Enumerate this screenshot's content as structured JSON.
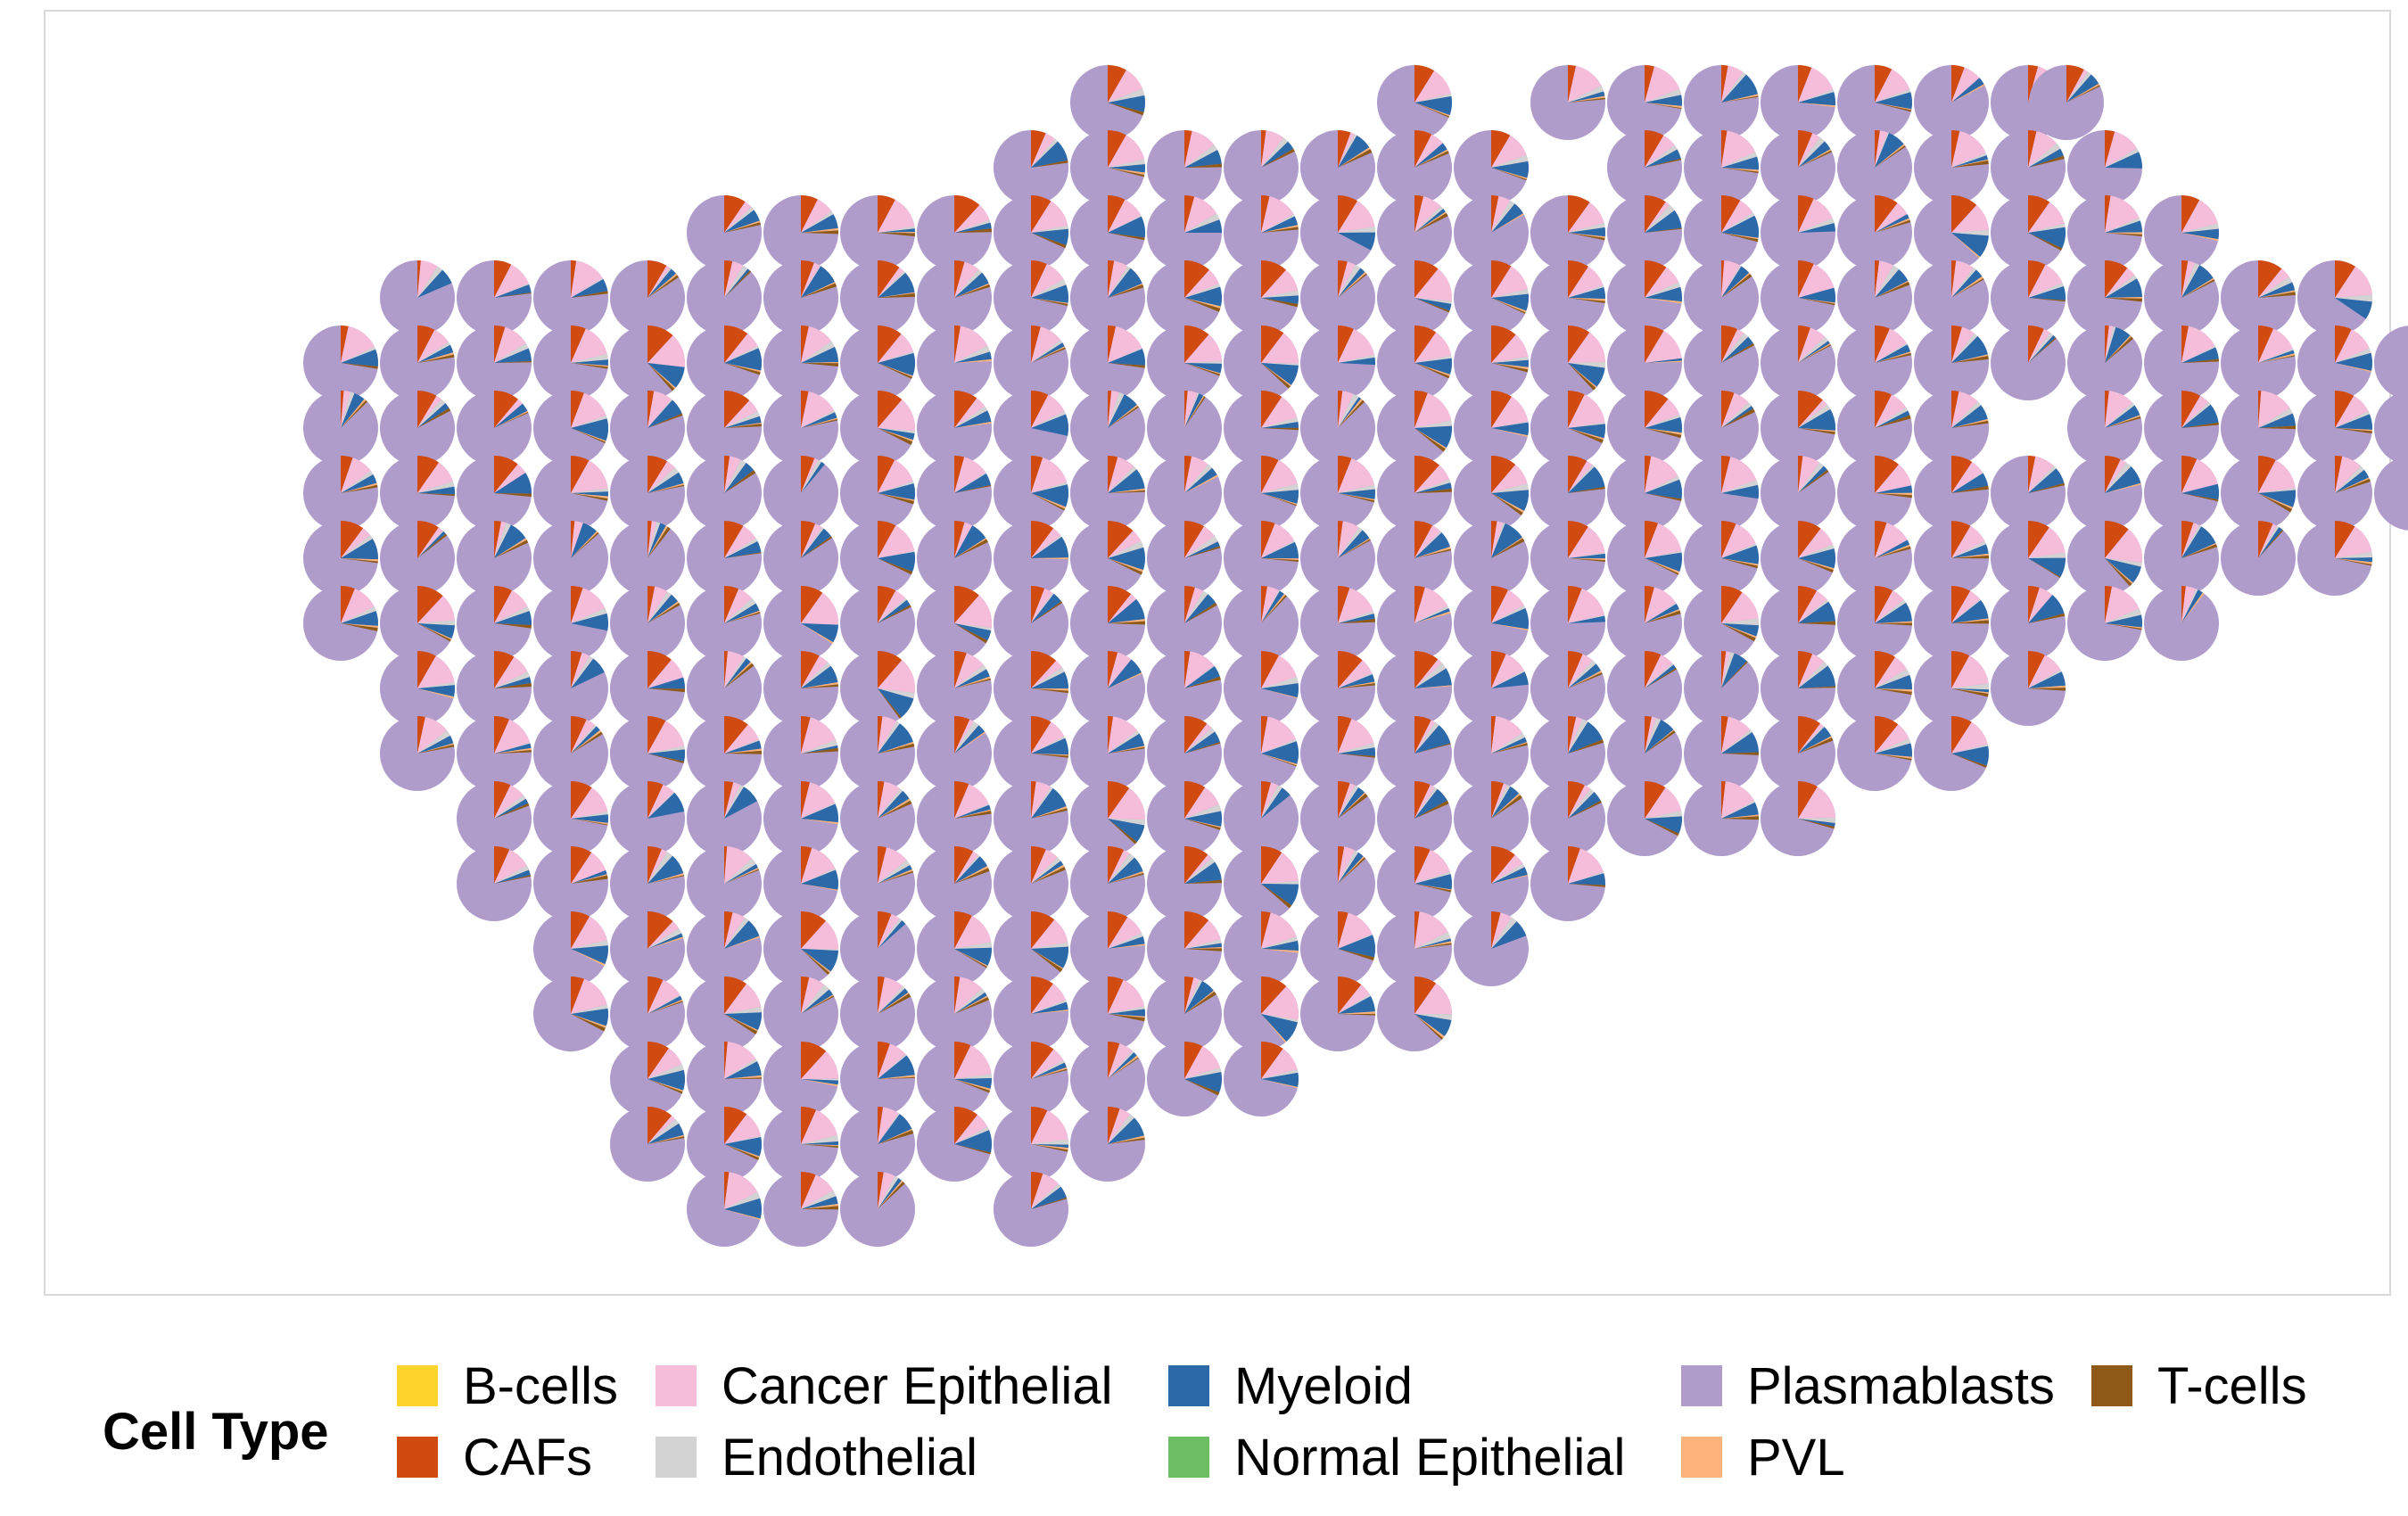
{
  "chart_data": {
    "type": "scatterpie",
    "title": "",
    "xlabel": "",
    "ylabel": "",
    "grid": false,
    "legend_position": "bottom",
    "legend": {
      "title": "Cell Type",
      "entries": [
        {
          "name": "B-cells",
          "color": "#FDD42B"
        },
        {
          "name": "CAFs",
          "color": "#D14A0F"
        },
        {
          "name": "Cancer Epithelial",
          "color": "#F6BDDB"
        },
        {
          "name": "Endothelial",
          "color": "#D3D3D3"
        },
        {
          "name": "Myeloid",
          "color": "#2C69A9"
        },
        {
          "name": "Normal Epithelial",
          "color": "#6DBD63"
        },
        {
          "name": "Plasmablasts",
          "color": "#AF9CCB"
        },
        {
          "name": "PVL",
          "color": "#FDB37A"
        },
        {
          "name": "T-cells",
          "color": "#8F5A18"
        }
      ]
    },
    "spot_rows": [
      {
        "row": 0,
        "cols": [
          12,
          16,
          18,
          19,
          20,
          21,
          22,
          23,
          24,
          24.5
        ]
      },
      {
        "row": 1,
        "cols": [
          11,
          12,
          13,
          14,
          15,
          16,
          17,
          19,
          20,
          21,
          22,
          23,
          24,
          25
        ]
      },
      {
        "row": 2,
        "cols": [
          7,
          8,
          9,
          10,
          11,
          12,
          13,
          14,
          15,
          16,
          17,
          18,
          19,
          20,
          21,
          22,
          23,
          24,
          25,
          26
        ]
      },
      {
        "row": 3,
        "cols": [
          3,
          4,
          5,
          6,
          7,
          8,
          9,
          10,
          11,
          12,
          13,
          14,
          15,
          16,
          17,
          18,
          19,
          20,
          21,
          22,
          23,
          24,
          25,
          26,
          27,
          28
        ]
      },
      {
        "row": 4,
        "cols": [
          2,
          3,
          4,
          5,
          6,
          7,
          8,
          9,
          10,
          11,
          12,
          13,
          14,
          15,
          16,
          17,
          18,
          19,
          20,
          21,
          22,
          23,
          24,
          25,
          26,
          27,
          28,
          29
        ]
      },
      {
        "row": 5,
        "cols": [
          2,
          3,
          4,
          5,
          6,
          7,
          8,
          9,
          10,
          11,
          12,
          13,
          14,
          15,
          16,
          17,
          18,
          19,
          20,
          21,
          22,
          23,
          25,
          26,
          27,
          28,
          29
        ]
      },
      {
        "row": 6,
        "cols": [
          2,
          3,
          4,
          5,
          6,
          7,
          8,
          9,
          10,
          11,
          12,
          13,
          14,
          15,
          16,
          17,
          18,
          19,
          20,
          21,
          22,
          23,
          24,
          25,
          26,
          27,
          28,
          29
        ]
      },
      {
        "row": 7,
        "cols": [
          2,
          3,
          4,
          5,
          6,
          7,
          8,
          9,
          10,
          11,
          12,
          13,
          14,
          15,
          16,
          17,
          18,
          19,
          20,
          21,
          22,
          23,
          24,
          25,
          26,
          27,
          28
        ]
      },
      {
        "row": 8,
        "cols": [
          2,
          3,
          4,
          5,
          6,
          7,
          8,
          9,
          10,
          11,
          12,
          13,
          14,
          15,
          16,
          17,
          18,
          19,
          20,
          21,
          22,
          23,
          24,
          25,
          26
        ]
      },
      {
        "row": 9,
        "cols": [
          3,
          4,
          5,
          6,
          7,
          8,
          9,
          10,
          11,
          12,
          13,
          14,
          15,
          16,
          17,
          18,
          19,
          20,
          21,
          22,
          23,
          24
        ]
      },
      {
        "row": 10,
        "cols": [
          3,
          4,
          5,
          6,
          7,
          8,
          9,
          10,
          11,
          12,
          13,
          14,
          15,
          16,
          17,
          18,
          19,
          20,
          21,
          22,
          23
        ]
      },
      {
        "row": 11,
        "cols": [
          4,
          5,
          6,
          7,
          8,
          9,
          10,
          11,
          12,
          13,
          14,
          15,
          16,
          17,
          18,
          19,
          20,
          21
        ]
      },
      {
        "row": 12,
        "cols": [
          4,
          5,
          6,
          7,
          8,
          9,
          10,
          11,
          12,
          13,
          14,
          15,
          16,
          17,
          18
        ]
      },
      {
        "row": 13,
        "cols": [
          5,
          6,
          7,
          8,
          9,
          10,
          11,
          12,
          13,
          14,
          15,
          16,
          17
        ]
      },
      {
        "row": 14,
        "cols": [
          5,
          6,
          7,
          8,
          9,
          10,
          11,
          12,
          13,
          14,
          15,
          16
        ]
      },
      {
        "row": 15,
        "cols": [
          6,
          7,
          8,
          9,
          10,
          11,
          12,
          13,
          14
        ]
      },
      {
        "row": 16,
        "cols": [
          6,
          7,
          8,
          9,
          10,
          11,
          12
        ]
      },
      {
        "row": 17,
        "cols": [
          7,
          8,
          9,
          11
        ]
      }
    ],
    "dominant_type": "Plasmablasts",
    "typical_composition": {
      "Plasmablasts": 0.78,
      "Cancer Epithelial": 0.08,
      "CAFs": 0.06,
      "Myeloid": 0.05,
      "Endothelial": 0.015,
      "T-cells": 0.008,
      "PVL": 0.005,
      "B-cells": 0.002,
      "Normal Epithelial": 0.001
    }
  }
}
